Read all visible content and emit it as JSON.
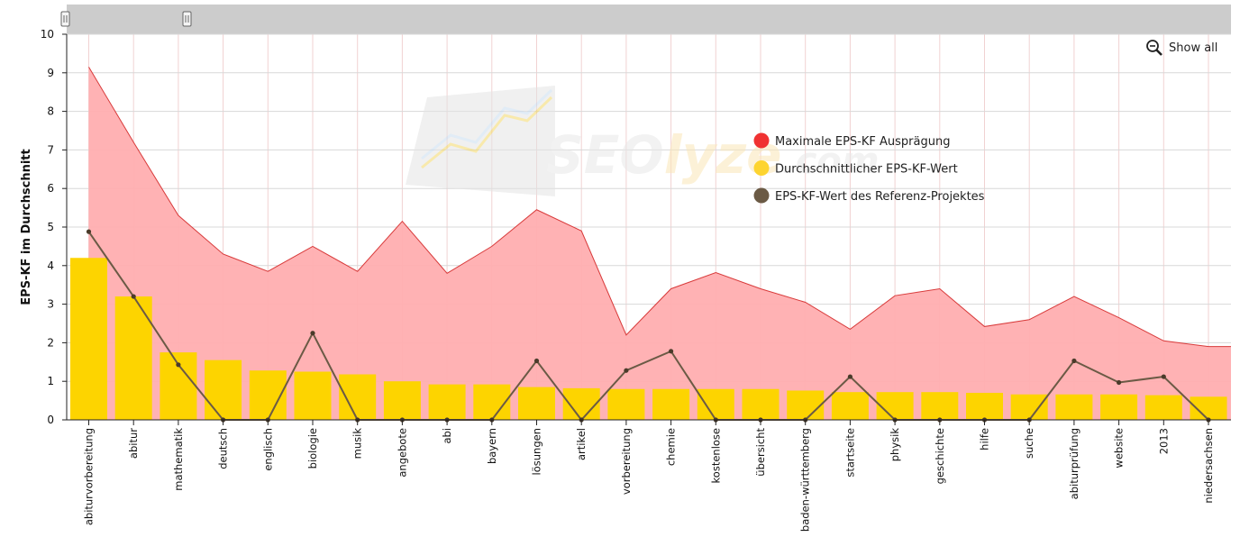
{
  "chart_data": {
    "type": "bar",
    "title": "",
    "xlabel": "",
    "ylabel": "EPS-KF im Durchschnitt",
    "ylim": [
      0,
      10
    ],
    "yticks": [
      0,
      1,
      2,
      3,
      4,
      5,
      6,
      7,
      8,
      9,
      10
    ],
    "grid": true,
    "legend_position": "top-right",
    "categories": [
      "abiturvorbereitung",
      "abitur",
      "mathematik",
      "deutsch",
      "englisch",
      "biologie",
      "musik",
      "angebote",
      "abi",
      "bayern",
      "lösungen",
      "artikel",
      "vorbereitung",
      "chemie",
      "kostenlose",
      "übersicht",
      "baden-württemberg",
      "startseite",
      "physik",
      "geschichte",
      "hilfe",
      "suche",
      "abiturprüfung",
      "website",
      "2013",
      "niedersachsen"
    ],
    "series": [
      {
        "name": "Maximale EPS-KF Ausprägung",
        "kind": "area",
        "color": "#ffaeb0",
        "stroke": "#d83a3a",
        "values": [
          9.15,
          7.2,
          5.3,
          4.3,
          3.85,
          4.5,
          3.85,
          5.15,
          3.8,
          4.5,
          5.45,
          4.9,
          2.2,
          3.4,
          3.82,
          3.4,
          3.05,
          2.35,
          3.22,
          3.4,
          2.42,
          2.6,
          3.2,
          2.65,
          2.05,
          1.9
        ]
      },
      {
        "name": "Durchschnittlicher EPS-KF-Wert",
        "kind": "bar",
        "color": "#fdd400",
        "values": [
          4.2,
          3.2,
          1.75,
          1.55,
          1.28,
          1.25,
          1.18,
          1.0,
          0.92,
          0.92,
          0.85,
          0.82,
          0.8,
          0.8,
          0.8,
          0.8,
          0.76,
          0.72,
          0.72,
          0.72,
          0.7,
          0.66,
          0.66,
          0.66,
          0.64,
          0.6
        ]
      },
      {
        "name": "EPS-KF-Wert des Referenz-Projektes",
        "kind": "line",
        "color": "#6b5a45",
        "values": [
          4.88,
          3.2,
          1.43,
          0,
          0,
          2.25,
          0,
          0,
          0,
          0,
          1.53,
          0,
          1.28,
          1.78,
          0,
          0,
          0,
          1.12,
          0,
          0,
          0,
          0,
          1.53,
          0.97,
          1.12,
          0
        ]
      }
    ]
  },
  "controls": {
    "show_all_label": "Show all",
    "zoom_icon": "zoom-out-icon",
    "scrollbar_color": "#cccccc"
  },
  "watermark": {
    "text_main": "SEO",
    "text_accent": "lyze",
    "text_suffix": ".com"
  }
}
